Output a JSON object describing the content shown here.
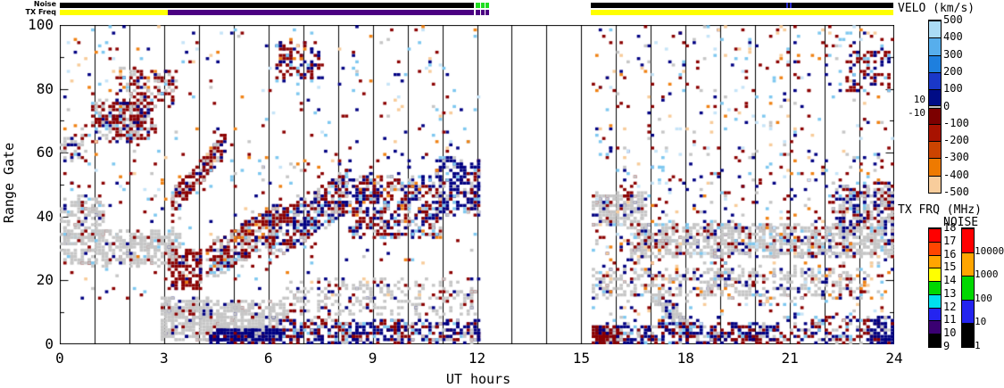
{
  "figure": {
    "bg": "#FFFFFF",
    "axis_color": "#000000"
  },
  "plot": {
    "x_axis": {
      "title": "UT hours",
      "min": 0,
      "max": 24,
      "major_ticks": [
        0,
        3,
        6,
        9,
        12,
        15,
        18,
        21,
        24
      ],
      "major_tick_labels": [
        "0",
        "3",
        "6",
        "9",
        "12",
        "15",
        "18",
        "21",
        "24"
      ],
      "minor_step": 1
    },
    "y_axis": {
      "title": "Range Gate",
      "min": 0,
      "max": 100,
      "major_ticks": [
        0,
        20,
        40,
        60,
        80,
        100
      ],
      "major_tick_labels": [
        "0",
        "20",
        "40",
        "60",
        "80",
        "100"
      ],
      "minor_step": 10
    },
    "vertical_guides_hours": [
      1,
      2,
      3,
      4,
      5,
      6,
      7,
      8,
      9,
      10,
      11,
      12,
      13,
      14,
      15,
      16,
      17,
      18,
      19,
      20,
      21,
      22,
      23
    ]
  },
  "quality_bars": {
    "noise_label": "Noise",
    "txfreq_label": "TX Freq",
    "noise_segments": [
      {
        "t": [
          0,
          11.91
        ],
        "c": "#000000"
      },
      {
        "t": [
          11.96,
          12.08
        ],
        "c": "#1FDD1F"
      },
      {
        "t": [
          12.11,
          12.21
        ],
        "c": "#1FDD1F"
      },
      {
        "t": [
          12.24,
          12.34
        ],
        "c": "#1FDD1F"
      },
      {
        "t": [
          15.27,
          23.97
        ],
        "c": "#000000"
      },
      {
        "t": [
          20.9,
          20.95
        ],
        "c": "#2B2BCC"
      },
      {
        "t": [
          21.0,
          21.04
        ],
        "c": "#2B2BCC"
      }
    ],
    "txfreq_segments": [
      {
        "t": [
          0,
          3.1
        ],
        "c": "#FFFF00"
      },
      {
        "t": [
          3.1,
          11.91
        ],
        "c": "#4B0082"
      },
      {
        "t": [
          11.96,
          12.08
        ],
        "c": "#4B0082"
      },
      {
        "t": [
          12.11,
          12.21
        ],
        "c": "#4B0082"
      },
      {
        "t": [
          12.24,
          12.34
        ],
        "c": "#4B0082"
      },
      {
        "t": [
          15.27,
          23.97
        ],
        "c": "#FFFF00"
      }
    ]
  },
  "colorbars": {
    "velo": {
      "title": "VELO (km/s)",
      "boundaries": [
        500,
        400,
        300,
        200,
        100,
        10,
        -10,
        -100,
        -200,
        -300,
        -400,
        -500
      ],
      "colors": [
        "#ABDCF5",
        "#57AEEC",
        "#1E7FDE",
        "#1A38C8",
        "#000C86",
        "#BDBDBD",
        "#7C0000",
        "#A81200",
        "#CC4400",
        "#EE7A00",
        "#F8CD9C"
      ],
      "labels": [
        {
          "text": "500",
          "v": 500
        },
        {
          "text": "400",
          "v": 400
        },
        {
          "text": "300",
          "v": 300
        },
        {
          "text": "200",
          "v": 200
        },
        {
          "text": "100",
          "v": 100
        },
        {
          "text": "0",
          "v": 0
        },
        {
          "text": "-100",
          "v": -100
        },
        {
          "text": "-200",
          "v": -200
        },
        {
          "text": "-300",
          "v": -300
        },
        {
          "text": "-400",
          "v": -400
        },
        {
          "text": "-500",
          "v": -500
        }
      ],
      "side_labels": [
        {
          "text": "10",
          "v": 10
        },
        {
          "text": "-10",
          "v": -10
        }
      ]
    },
    "txfrq": {
      "title": "TX FRQ (MHz)",
      "labels": [
        "18",
        "17",
        "16",
        "15",
        "14",
        "13",
        "12",
        "11",
        "10",
        "9"
      ],
      "colors": [
        "#FF0000",
        "#FF4500",
        "#FFA500",
        "#FFFF00",
        "#00D800",
        "#00E0EE",
        "#2424F0",
        "#3A0072",
        "#000000"
      ]
    },
    "noise": {
      "title": "NOISE",
      "labels": [
        "10000",
        "1000",
        "100",
        "10",
        "1"
      ],
      "colors": [
        "#FF0000",
        "#FFA500",
        "#00D800",
        "#2424EE",
        "#000000"
      ]
    }
  },
  "chart_data": {
    "type": "heatmap",
    "title": "",
    "xlabel": "UT hours",
    "ylabel": "Range Gate",
    "xlim": [
      0,
      24
    ],
    "ylim": [
      0,
      100
    ],
    "x_ticks": [
      0,
      3,
      6,
      9,
      12,
      15,
      18,
      21,
      24
    ],
    "y_ticks": [
      0,
      20,
      40,
      60,
      80,
      100
    ],
    "grid": "hourly-vertical-lines",
    "legend_position": "right",
    "data_gaps_hours": [
      [
        12.34,
        15.27
      ]
    ],
    "velocity_scale_km_s": [
      -500,
      500
    ],
    "ground_scatter_color_key": "gy",
    "palette": {
      "gy": "#C6C6C6",
      "dr": "#8B0000",
      "rd": "#A81400",
      "nv": "#000082",
      "bl": "#2B6BD4",
      "lb": "#7EC8F0",
      "pb": "#C6E4F8",
      "or": "#F08214",
      "pc": "#F8CC9A"
    },
    "clusters": [
      {
        "t": [
          0,
          1.25
        ],
        "g": [
          33,
          46
        ],
        "n": 150,
        "w": {
          "gy": 0.8,
          "dr": 0.07,
          "nv": 0.06,
          "lb": 0.07
        }
      },
      {
        "t": [
          0,
          3.45
        ],
        "g": [
          24,
          35
        ],
        "n": 430,
        "w": {
          "gy": 0.86,
          "dr": 0.07,
          "nv": 0.04,
          "lb": 0.03
        }
      },
      {
        "t": [
          0,
          0.7
        ],
        "g": [
          57,
          65
        ],
        "n": 40,
        "w": {
          "gy": 0.45,
          "dr": 0.3,
          "nv": 0.25
        }
      },
      {
        "t": [
          0.85,
          2.7
        ],
        "g": [
          63,
          76
        ],
        "n": 270,
        "w": {
          "dr": 0.5,
          "gy": 0.28,
          "nv": 0.14,
          "lb": 0.08
        }
      },
      {
        "t": [
          1.6,
          3.35
        ],
        "g": [
          74,
          86
        ],
        "n": 120,
        "w": {
          "dr": 0.5,
          "gy": 0.27,
          "nv": 0.15,
          "or": 0.08
        }
      },
      {
        "t": [
          3.1,
          4.05
        ],
        "g": [
          17,
          29
        ],
        "n": 130,
        "w": {
          "dr": 0.72,
          "gy": 0.16,
          "nv": 0.12
        }
      },
      {
        "t": [
          3.2,
          4.7
        ],
        "g": [
          44,
          62
        ],
        "diag": true,
        "jit": 4,
        "n": 150,
        "w": {
          "dr": 0.6,
          "gy": 0.24,
          "nv": 0.1,
          "lb": 0.06
        }
      },
      {
        "t": [
          4.2,
          6.3
        ],
        "g": [
          25,
          38
        ],
        "diag": true,
        "jit": 6,
        "n": 340,
        "w": {
          "dr": 0.4,
          "gy": 0.33,
          "nv": 0.15,
          "lb": 0.06,
          "or": 0.06
        }
      },
      {
        "t": [
          6.0,
          8.3
        ],
        "g": [
          32,
          48
        ],
        "diag": true,
        "jit": 7,
        "n": 390,
        "w": {
          "dr": 0.34,
          "nv": 0.3,
          "gy": 0.24,
          "lb": 0.12
        }
      },
      {
        "t": [
          8.3,
          10.9
        ],
        "g": [
          33,
          52
        ],
        "n": 430,
        "w": {
          "dr": 0.34,
          "nv": 0.3,
          "gy": 0.2,
          "lb": 0.1,
          "or": 0.06
        }
      },
      {
        "t": [
          10.8,
          12.05
        ],
        "g": [
          40,
          58
        ],
        "n": 210,
        "w": {
          "nv": 0.58,
          "dr": 0.16,
          "gy": 0.16,
          "lb": 0.1
        }
      },
      {
        "t": [
          2.85,
          4.35
        ],
        "g": [
          1,
          14
        ],
        "n": 310,
        "w": {
          "gy": 0.9,
          "dr": 0.05,
          "nv": 0.05
        }
      },
      {
        "t": [
          4.4,
          6.4
        ],
        "g": [
          4,
          13
        ],
        "n": 280,
        "w": {
          "gy": 0.88,
          "dr": 0.06,
          "nv": 0.06
        }
      },
      {
        "t": [
          6.4,
          12.0
        ],
        "g": [
          8,
          20
        ],
        "n": 270,
        "w": {
          "gy": 0.78,
          "dr": 0.11,
          "nv": 0.11
        }
      },
      {
        "t": [
          4.2,
          6.4
        ],
        "g": [
          0,
          4
        ],
        "n": 230,
        "w": {
          "nv": 0.78,
          "dr": 0.12,
          "gy": 0.1
        }
      },
      {
        "t": [
          6.4,
          12.05
        ],
        "g": [
          0,
          7
        ],
        "n": 430,
        "w": {
          "nv": 0.44,
          "dr": 0.3,
          "gy": 0.14,
          "lb": 0.12
        }
      },
      {
        "t": [
          6.15,
          7.45
        ],
        "g": [
          82,
          94
        ],
        "n": 95,
        "w": {
          "dr": 0.58,
          "nv": 0.24,
          "or": 0.08,
          "lb": 0.1
        }
      },
      {
        "t": [
          0,
          12.05
        ],
        "g": [
          46,
          100
        ],
        "n": 270,
        "w": {
          "lb": 0.18,
          "pb": 0.12,
          "dr": 0.24,
          "nv": 0.2,
          "or": 0.1,
          "pc": 0.1,
          "gy": 0.06
        }
      },
      {
        "t": [
          0,
          12.05
        ],
        "g": [
          12,
          60
        ],
        "n": 210,
        "w": {
          "dr": 0.28,
          "nv": 0.22,
          "gy": 0.2,
          "lb": 0.12,
          "or": 0.09,
          "pc": 0.09
        }
      },
      {
        "t": [
          15.3,
          16.8
        ],
        "g": [
          37,
          47
        ],
        "n": 190,
        "w": {
          "gy": 0.82,
          "dr": 0.09,
          "nv": 0.09
        }
      },
      {
        "t": [
          16.3,
          24
        ],
        "g": [
          27,
          37
        ],
        "n": 900,
        "w": {
          "gy": 0.8,
          "dr": 0.09,
          "nv": 0.07,
          "lb": 0.04
        }
      },
      {
        "t": [
          15.3,
          23.2
        ],
        "g": [
          14,
          23
        ],
        "n": 430,
        "w": {
          "gy": 0.78,
          "dr": 0.09,
          "nv": 0.09,
          "or": 0.04
        }
      },
      {
        "t": [
          17.0,
          18.0
        ],
        "g": [
          16,
          4
        ],
        "diag": true,
        "jit": 3,
        "n": 100,
        "w": {
          "gy": 0.88,
          "nv": 0.12
        }
      },
      {
        "t": [
          15.3,
          16.1
        ],
        "g": [
          0,
          5
        ],
        "n": 160,
        "w": {
          "dr": 0.66,
          "nv": 0.22,
          "gy": 0.12
        }
      },
      {
        "t": [
          16.1,
          20.6
        ],
        "g": [
          0,
          6
        ],
        "n": 310,
        "w": {
          "nv": 0.4,
          "dr": 0.34,
          "gy": 0.14,
          "lb": 0.12
        }
      },
      {
        "t": [
          15.3,
          24
        ],
        "g": [
          6,
          60
        ],
        "n": 560,
        "w": {
          "dr": 0.24,
          "nv": 0.22,
          "gy": 0.18,
          "lb": 0.12,
          "or": 0.08,
          "pc": 0.09,
          "pb": 0.07
        }
      },
      {
        "t": [
          15.3,
          24
        ],
        "g": [
          60,
          100
        ],
        "n": 290,
        "w": {
          "lb": 0.14,
          "pb": 0.12,
          "pc": 0.12,
          "or": 0.1,
          "dr": 0.26,
          "nv": 0.18,
          "gy": 0.08
        }
      },
      {
        "t": [
          22.6,
          23.85
        ],
        "g": [
          78,
          92
        ],
        "n": 75,
        "w": {
          "dr": 0.62,
          "nv": 0.2,
          "lb": 0.18
        }
      },
      {
        "t": [
          22.2,
          24
        ],
        "g": [
          36,
          50
        ],
        "n": 230,
        "w": {
          "gy": 0.52,
          "dr": 0.22,
          "nv": 0.2,
          "lb": 0.06
        }
      },
      {
        "t": [
          23.2,
          24
        ],
        "g": [
          0,
          8
        ],
        "n": 95,
        "w": {
          "nv": 0.7,
          "dr": 0.18,
          "gy": 0.12
        }
      },
      {
        "t": [
          20.6,
          23.2
        ],
        "g": [
          0,
          8
        ],
        "n": 130,
        "w": {
          "dr": 0.38,
          "nv": 0.3,
          "gy": 0.2,
          "lb": 0.12
        }
      }
    ]
  }
}
